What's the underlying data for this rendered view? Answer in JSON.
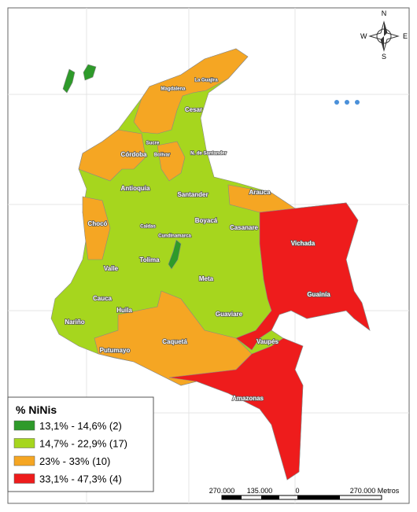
{
  "compass": {
    "n": "N",
    "s": "S",
    "e": "E",
    "w": "W"
  },
  "regions": [
    "La Guajira",
    "Magdalena",
    "Cesar",
    "Sucre",
    "Córdoba",
    "Bolívar",
    "N. de Santander",
    "Antioquia",
    "Santander",
    "Arauca",
    "Chocó",
    "Caldas",
    "Boyacá",
    "Casanare",
    "Cundinamarca",
    "Vichada",
    "Tolima",
    "Valle",
    "Meta",
    "Guainía",
    "Cauca",
    "Huila",
    "Guaviare",
    "Nariño",
    "Vaupés",
    "Caquetá",
    "Putumayo",
    "Amazonas"
  ],
  "legend": {
    "title": "% NiNis",
    "items": [
      {
        "label": "13,1% - 14,6% (2)",
        "color": "#2e9a2a"
      },
      {
        "label": "14,7% - 22,9% (17)",
        "color": "#a6d61e"
      },
      {
        "label": "23% - 33% (10)",
        "color": "#f5a623"
      },
      {
        "label": "33,1% - 47,3% (4)",
        "color": "#ee1c1c"
      }
    ]
  },
  "scale": {
    "labels": [
      "270.000",
      "135.000",
      "0",
      "270.000 Metros"
    ]
  }
}
